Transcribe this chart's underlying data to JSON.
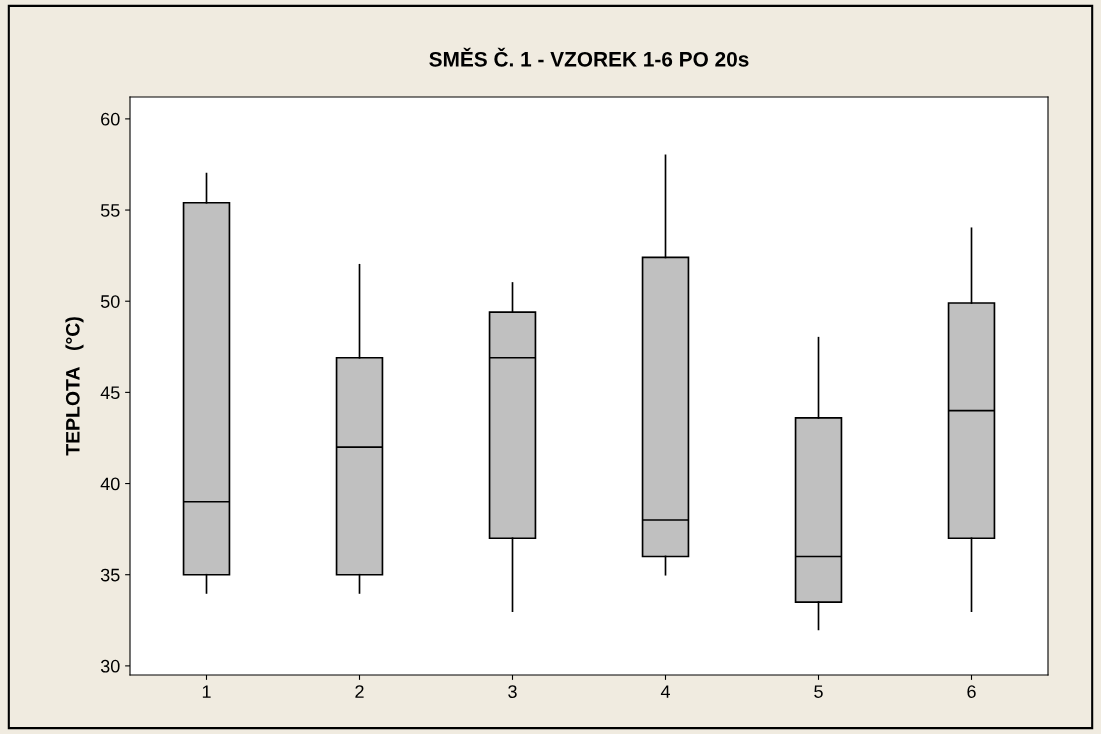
{
  "chart_data": {
    "type": "box",
    "title": "SMĚS Č. 1 - VZOREK 1-6 PO 20s",
    "ylabel": "TEPLOTA   (°C)",
    "categories": [
      "1",
      "2",
      "3",
      "4",
      "5",
      "6"
    ],
    "color": "#c0c0c0",
    "boxes": [
      {
        "low": 34,
        "q1": 35,
        "median": 39,
        "q3": 55.4,
        "high": 57
      },
      {
        "low": 34,
        "q1": 35,
        "median": 42,
        "q3": 46.9,
        "high": 52
      },
      {
        "low": 33,
        "q1": 37,
        "median": 46.9,
        "q3": 49.4,
        "high": 51
      },
      {
        "low": 35,
        "q1": 36,
        "median": 38,
        "q3": 52.4,
        "high": 58
      },
      {
        "low": 32,
        "q1": 33.5,
        "median": 36,
        "q3": 43.6,
        "high": 48
      },
      {
        "low": 33,
        "q1": 37,
        "median": 44,
        "q3": 49.9,
        "high": 54
      }
    ],
    "ylim": [
      29.5,
      61.2
    ],
    "yticks": [
      30,
      35,
      40,
      45,
      50,
      55,
      60
    ],
    "grid": false
  }
}
